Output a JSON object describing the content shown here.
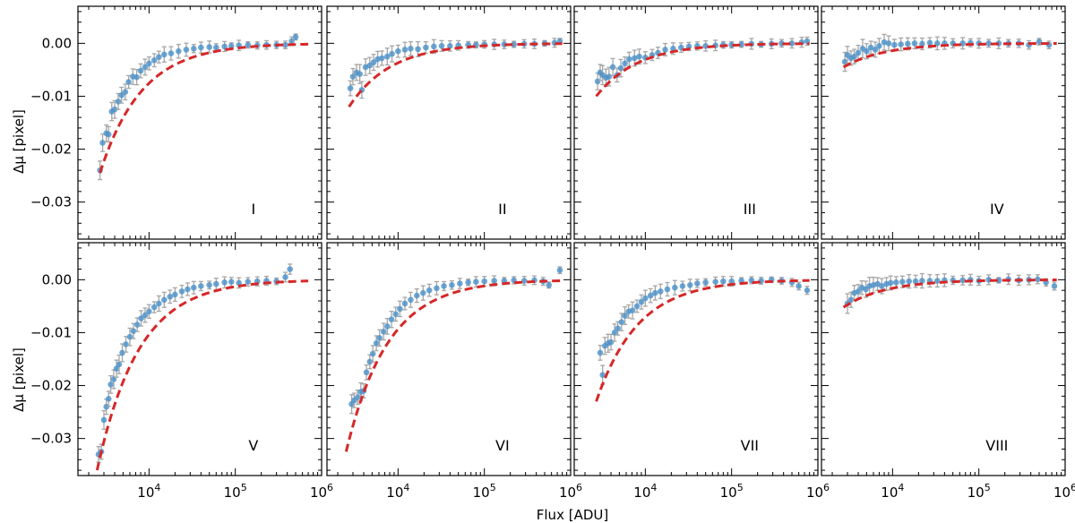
{
  "figure": {
    "xlabel": "Flux [ADU]",
    "ylabel": "Δμ [pixel]"
  },
  "colors": {
    "points": "#4a90c8",
    "errorbars": "#a6a6a6",
    "fit": "#d62728",
    "axes": "#000000"
  },
  "chart_data": {
    "type": "scatter",
    "layout": "2x4 grid, shared axes",
    "xscale": "log",
    "xlim": [
      1500,
      1000000
    ],
    "ylim": [
      -0.037,
      0.007
    ],
    "x_ticks": [
      {
        "value": 10000,
        "label": "10^4"
      },
      {
        "value": 100000,
        "label": "10^5"
      },
      {
        "value": 1000000,
        "label": "10^6"
      }
    ],
    "y_ticks": [
      {
        "value": 0.0,
        "label": "0.00"
      },
      {
        "value": -0.01,
        "label": "−0.01"
      },
      {
        "value": -0.02,
        "label": "−0.02"
      },
      {
        "value": -0.03,
        "label": "−0.03"
      }
    ],
    "series": [
      {
        "name": "data points (with error bars)",
        "style": "blue markers"
      },
      {
        "name": "fit",
        "style": "red dashed line"
      }
    ],
    "panels": [
      {
        "label": "I",
        "fit": {
          "A": -0.0245,
          "xmin": 2700,
          "xmax": 700000
        },
        "points": [
          [
            2700,
            -0.024
          ],
          [
            2900,
            -0.0188
          ],
          [
            3200,
            -0.017
          ],
          [
            3400,
            -0.0172
          ],
          [
            3700,
            -0.0129
          ],
          [
            4000,
            -0.0125
          ],
          [
            4400,
            -0.011
          ],
          [
            4800,
            -0.0098
          ],
          [
            5300,
            -0.0092
          ],
          [
            5800,
            -0.0073
          ],
          [
            6500,
            -0.0063
          ],
          [
            7200,
            -0.0064
          ],
          [
            8000,
            -0.0052
          ],
          [
            9000,
            -0.0045
          ],
          [
            10000,
            -0.0038
          ],
          [
            11500,
            -0.0032
          ],
          [
            13000,
            -0.0026
          ],
          [
            15000,
            -0.0021
          ],
          [
            18000,
            -0.0019
          ],
          [
            22000,
            -0.0015
          ],
          [
            27000,
            -0.0012
          ],
          [
            33000,
            -0.001
          ],
          [
            40000,
            -0.0008
          ],
          [
            50000,
            -0.0007
          ],
          [
            60000,
            -0.0008
          ],
          [
            75000,
            -0.0006
          ],
          [
            90000,
            -0.0005
          ],
          [
            110000,
            -0.0004
          ],
          [
            140000,
            -0.0003
          ],
          [
            180000,
            -0.0004
          ],
          [
            230000,
            -0.0003
          ],
          [
            300000,
            -0.0003
          ],
          [
            380000,
            -0.0003
          ],
          [
            450000,
            0.0004
          ],
          [
            500000,
            0.0012
          ]
        ]
      },
      {
        "label": "II",
        "fit": {
          "A": -0.012,
          "xmin": 2700,
          "xmax": 800000
        },
        "points": [
          [
            2800,
            -0.0085
          ],
          [
            3000,
            -0.0063
          ],
          [
            3300,
            -0.0055
          ],
          [
            3600,
            -0.0058
          ],
          [
            3800,
            -0.0088
          ],
          [
            4200,
            -0.0045
          ],
          [
            4700,
            -0.0042
          ],
          [
            5200,
            -0.0036
          ],
          [
            5800,
            -0.003
          ],
          [
            6500,
            -0.0028
          ],
          [
            7500,
            -0.0025
          ],
          [
            8500,
            -0.002
          ],
          [
            10000,
            -0.0015
          ],
          [
            12000,
            -0.0012
          ],
          [
            14000,
            -0.001
          ],
          [
            17000,
            -0.0011
          ],
          [
            21000,
            -0.0008
          ],
          [
            26000,
            -0.0006
          ],
          [
            32000,
            -0.0005
          ],
          [
            40000,
            -0.0005
          ],
          [
            50000,
            -0.0004
          ],
          [
            65000,
            -0.0003
          ],
          [
            80000,
            -0.0003
          ],
          [
            100000,
            -0.0002
          ],
          [
            130000,
            -0.0002
          ],
          [
            170000,
            -0.0002
          ],
          [
            220000,
            -0.0002
          ],
          [
            290000,
            -0.0001
          ],
          [
            380000,
            -0.0001
          ],
          [
            500000,
            0.0
          ],
          [
            650000,
            0.0001
          ],
          [
            750000,
            0.0004
          ]
        ]
      },
      {
        "label": "III",
        "fit": {
          "A": -0.01,
          "xmin": 2700,
          "xmax": 800000
        },
        "points": [
          [
            2800,
            -0.0072
          ],
          [
            3000,
            -0.0055
          ],
          [
            3200,
            -0.006
          ],
          [
            3500,
            -0.0065
          ],
          [
            3800,
            -0.0063
          ],
          [
            4200,
            -0.0045
          ],
          [
            4700,
            -0.006
          ],
          [
            5200,
            -0.0047
          ],
          [
            5800,
            -0.0038
          ],
          [
            6500,
            -0.003
          ],
          [
            7500,
            -0.0028
          ],
          [
            8500,
            -0.0025
          ],
          [
            10000,
            -0.0027
          ],
          [
            12000,
            -0.0022
          ],
          [
            14000,
            -0.0018
          ],
          [
            17000,
            -0.0012
          ],
          [
            21000,
            -0.001
          ],
          [
            26000,
            -0.0008
          ],
          [
            32000,
            -0.0006
          ],
          [
            40000,
            -0.0005
          ],
          [
            50000,
            -0.0005
          ],
          [
            65000,
            -0.0004
          ],
          [
            80000,
            -0.0003
          ],
          [
            100000,
            -0.0003
          ],
          [
            130000,
            -0.0002
          ],
          [
            170000,
            -0.0001
          ],
          [
            220000,
            -0.0002
          ],
          [
            290000,
            -0.0001
          ],
          [
            380000,
            0.0
          ],
          [
            500000,
            0.0
          ],
          [
            650000,
            0.0002
          ],
          [
            750000,
            0.0004
          ]
        ]
      },
      {
        "label": "IV",
        "fit": {
          "A": -0.0045,
          "xmin": 2700,
          "xmax": 800000
        },
        "points": [
          [
            2800,
            -0.0035
          ],
          [
            3000,
            -0.0022
          ],
          [
            3300,
            -0.0028
          ],
          [
            3600,
            -0.0025
          ],
          [
            4000,
            -0.0018
          ],
          [
            4500,
            -0.001
          ],
          [
            5000,
            -0.0015
          ],
          [
            5600,
            -0.0008
          ],
          [
            6300,
            -0.0012
          ],
          [
            7000,
            -0.0005
          ],
          [
            8000,
            0.0002
          ],
          [
            9000,
            0.0
          ],
          [
            10500,
            -0.0003
          ],
          [
            12500,
            -0.0002
          ],
          [
            15000,
            -0.0001
          ],
          [
            18000,
            0.0
          ],
          [
            22000,
            -0.0001
          ],
          [
            27000,
            0.0001
          ],
          [
            33000,
            0.0
          ],
          [
            40000,
            0.0
          ],
          [
            50000,
            0.0
          ],
          [
            65000,
            0.0
          ],
          [
            80000,
            0.0001
          ],
          [
            100000,
            0.0
          ],
          [
            130000,
            0.0
          ],
          [
            170000,
            0.0
          ],
          [
            220000,
            0.0
          ],
          [
            290000,
            0.0
          ],
          [
            380000,
            -0.0003
          ],
          [
            500000,
            0.0003
          ],
          [
            650000,
            -0.0003
          ]
        ]
      },
      {
        "label": "V",
        "fit": {
          "A": -0.036,
          "xmin": 2500,
          "xmax": 700000
        },
        "points": [
          [
            2600,
            -0.033
          ],
          [
            2800,
            -0.0325
          ],
          [
            3000,
            -0.0265
          ],
          [
            3200,
            -0.024
          ],
          [
            3400,
            -0.0225
          ],
          [
            3600,
            -0.0198
          ],
          [
            3900,
            -0.0188
          ],
          [
            4200,
            -0.0168
          ],
          [
            4500,
            -0.016
          ],
          [
            4900,
            -0.0138
          ],
          [
            5400,
            -0.0122
          ],
          [
            6000,
            -0.0108
          ],
          [
            6600,
            -0.0097
          ],
          [
            7300,
            -0.0085
          ],
          [
            8100,
            -0.0073
          ],
          [
            9000,
            -0.0067
          ],
          [
            10000,
            -0.006
          ],
          [
            11500,
            -0.0052
          ],
          [
            13000,
            -0.0045
          ],
          [
            15000,
            -0.0038
          ],
          [
            17500,
            -0.0032
          ],
          [
            20000,
            -0.0028
          ],
          [
            24000,
            -0.0022
          ],
          [
            28000,
            -0.0018
          ],
          [
            33000,
            -0.0015
          ],
          [
            40000,
            -0.0012
          ],
          [
            50000,
            -0.001
          ],
          [
            60000,
            -0.0008
          ],
          [
            75000,
            -0.0005
          ],
          [
            90000,
            -0.0004
          ],
          [
            110000,
            -0.0006
          ],
          [
            140000,
            -0.0004
          ],
          [
            180000,
            -0.0003
          ],
          [
            230000,
            -0.0002
          ],
          [
            300000,
            -0.0003
          ],
          [
            380000,
            0.0005
          ],
          [
            430000,
            0.002
          ]
        ]
      },
      {
        "label": "VI",
        "fit": {
          "A": -0.0325,
          "xmin": 2500,
          "xmax": 800000
        },
        "points": [
          [
            2900,
            -0.0235
          ],
          [
            3100,
            -0.0228
          ],
          [
            3400,
            -0.0222
          ],
          [
            3700,
            -0.0212
          ],
          [
            4000,
            -0.021
          ],
          [
            4300,
            -0.0175
          ],
          [
            4700,
            -0.0155
          ],
          [
            5100,
            -0.014
          ],
          [
            5600,
            -0.012
          ],
          [
            6100,
            -0.011
          ],
          [
            6800,
            -0.0098
          ],
          [
            7500,
            -0.0088
          ],
          [
            8400,
            -0.0075
          ],
          [
            9400,
            -0.0065
          ],
          [
            10500,
            -0.0055
          ],
          [
            12000,
            -0.0045
          ],
          [
            14000,
            -0.0038
          ],
          [
            16500,
            -0.003
          ],
          [
            19500,
            -0.0025
          ],
          [
            23000,
            -0.002
          ],
          [
            28000,
            -0.0016
          ],
          [
            34000,
            -0.0012
          ],
          [
            42000,
            -0.001
          ],
          [
            52000,
            -0.0007
          ],
          [
            65000,
            -0.0005
          ],
          [
            80000,
            -0.0004
          ],
          [
            100000,
            -0.0003
          ],
          [
            130000,
            -0.0002
          ],
          [
            170000,
            -0.0002
          ],
          [
            220000,
            -0.0001
          ],
          [
            290000,
            -0.0002
          ],
          [
            380000,
            -0.0001
          ],
          [
            480000,
            -0.0003
          ],
          [
            560000,
            -0.001
          ],
          [
            750000,
            0.0018
          ]
        ]
      },
      {
        "label": "VII",
        "fit": {
          "A": -0.023,
          "xmin": 2700,
          "xmax": 800000
        },
        "points": [
          [
            3000,
            -0.0138
          ],
          [
            3200,
            -0.018
          ],
          [
            3400,
            -0.0125
          ],
          [
            3700,
            -0.012
          ],
          [
            4000,
            -0.0118
          ],
          [
            4400,
            -0.01
          ],
          [
            4800,
            -0.0092
          ],
          [
            5300,
            -0.008
          ],
          [
            5800,
            -0.0068
          ],
          [
            6400,
            -0.006
          ],
          [
            7100,
            -0.0058
          ],
          [
            8000,
            -0.005
          ],
          [
            9000,
            -0.0042
          ],
          [
            10000,
            -0.0035
          ],
          [
            11500,
            -0.003
          ],
          [
            13000,
            -0.0025
          ],
          [
            15000,
            -0.0022
          ],
          [
            18000,
            -0.0018
          ],
          [
            22000,
            -0.0015
          ],
          [
            27000,
            -0.0012
          ],
          [
            33000,
            -0.001
          ],
          [
            40000,
            -0.0007
          ],
          [
            50000,
            -0.0005
          ],
          [
            65000,
            -0.0004
          ],
          [
            80000,
            -0.0003
          ],
          [
            100000,
            -0.0003
          ],
          [
            130000,
            -0.0002
          ],
          [
            170000,
            -0.0001
          ],
          [
            220000,
            -0.0002
          ],
          [
            290000,
            0.0
          ],
          [
            380000,
            -0.0002
          ],
          [
            500000,
            -0.0005
          ],
          [
            600000,
            -0.0012
          ],
          [
            750000,
            -0.002
          ]
        ]
      },
      {
        "label": "VIII",
        "fit": {
          "A": -0.0052,
          "xmin": 2700,
          "xmax": 800000
        },
        "points": [
          [
            3000,
            -0.0045
          ],
          [
            3300,
            -0.0038
          ],
          [
            3600,
            -0.0025
          ],
          [
            4000,
            -0.0022
          ],
          [
            4400,
            -0.0015
          ],
          [
            4900,
            -0.0018
          ],
          [
            5400,
            -0.0012
          ],
          [
            6000,
            -0.001
          ],
          [
            6700,
            -0.0008
          ],
          [
            7500,
            -0.0012
          ],
          [
            8500,
            -0.0008
          ],
          [
            9500,
            -0.0006
          ],
          [
            11000,
            -0.0005
          ],
          [
            13000,
            -0.0004
          ],
          [
            15500,
            -0.0003
          ],
          [
            18500,
            -0.0003
          ],
          [
            22000,
            -0.0002
          ],
          [
            27000,
            -0.0002
          ],
          [
            33000,
            -0.0002
          ],
          [
            40000,
            -0.0001
          ],
          [
            50000,
            -0.0001
          ],
          [
            65000,
            -0.0001
          ],
          [
            80000,
            0.0
          ],
          [
            100000,
            -0.0002
          ],
          [
            130000,
            0.0
          ],
          [
            170000,
            -0.0001
          ],
          [
            220000,
            0.0001
          ],
          [
            290000,
            -0.0001
          ],
          [
            380000,
            0.0
          ],
          [
            480000,
            0.0001
          ],
          [
            600000,
            -0.0005
          ],
          [
            750000,
            -0.0012
          ]
        ]
      }
    ]
  }
}
